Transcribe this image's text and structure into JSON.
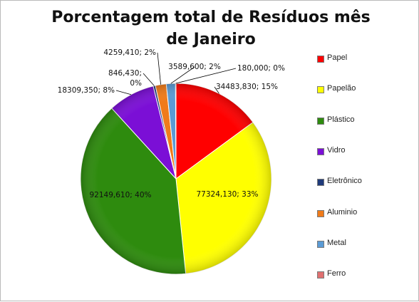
{
  "chart_data": {
    "type": "pie",
    "title": "Porcentagem  total de Resíduos mês de Janeiro",
    "slices": [
      {
        "name": "Papel",
        "value": 34483.83,
        "percent": 15,
        "label": "34483,830; 15%",
        "color": "#ff0000"
      },
      {
        "name": "Papelão",
        "value": 77324.13,
        "percent": 33,
        "label": "77324,130; 33%",
        "color": "#ffff00"
      },
      {
        "name": "Plástico",
        "value": 92149.61,
        "percent": 40,
        "label": "92149,610; 40%",
        "color": "#2e8b0e"
      },
      {
        "name": "Vidro",
        "value": 18309.35,
        "percent": 8,
        "label": "18309,350; 8%",
        "color": "#7b0fd6"
      },
      {
        "name": "Eletrônico",
        "value": 846.43,
        "percent": 0,
        "label": "846,430;\n0%",
        "color": "#1f3a7a"
      },
      {
        "name": "Aluminio",
        "value": 4259.41,
        "percent": 2,
        "label": "4259,410; 2%",
        "color": "#f07b1a"
      },
      {
        "name": "Metal",
        "value": 3589.6,
        "percent": 2,
        "label": "3589,600; 2%",
        "color": "#5b9bd5"
      },
      {
        "name": "Ferro",
        "value": 180.0,
        "percent": 0,
        "label": "180,000; 0%",
        "color": "#e07070"
      }
    ],
    "legend_position": "right",
    "start": "top",
    "direction": "clockwise"
  }
}
